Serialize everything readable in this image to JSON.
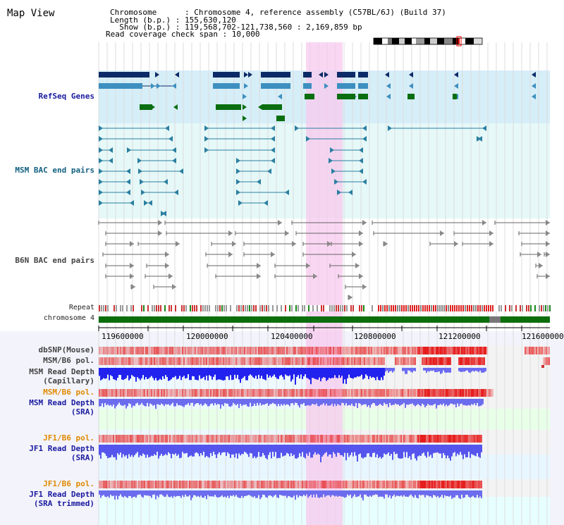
{
  "title": "Map View",
  "info": {
    "chromosome": "Chromosome      : Chromosome 4, reference assembly (C57BL/6J) (Build 37)",
    "length": "Length (b.p.) : 155,630,120",
    "show": "  Show (b.p.) : 119,568,702-121,738,560 : 2,169,859 bp",
    "read_coverage": "Read coverage check span : 10,000"
  },
  "tracks": {
    "refseq": "RefSeq Genes",
    "msm_bac": "MSM BAC end pairs",
    "b6n_bac": "B6N BAC end pairs",
    "repeat": "Repeat",
    "chromosome": "chromosome 4",
    "dbsnp": "dbSNP(Mouse)",
    "msm_b6_pol": "MSM/B6 pol.",
    "msm_read_cap_1": "MSM Read Depth",
    "msm_read_cap_2": "(Capillary)",
    "msm_b6_pol2": "MSM/B6 pol.",
    "msm_read_sra_1": "MSM Read Depth",
    "msm_read_sra_2": "(SRA)",
    "jf1_b6_pol": "JF1/B6 pol.",
    "jf1_read_sra_1": "JF1 Read Depth",
    "jf1_read_sra_2": "(SRA)",
    "jf1_b6_pol2": "JF1/B6 pol.",
    "jf1_read_trim_1": "JF1 Read Depth",
    "jf1_read_trim_2": "(SRA trimmed)"
  },
  "axis": {
    "ticks": [
      "119600000",
      "120000000",
      "120400000",
      "120800000",
      "121200000",
      "121600000"
    ]
  },
  "colors": {
    "highlight": "#f7c9ee",
    "refseq_dark": "#0c2a66",
    "refseq_mid": "#3d8fc0",
    "refseq_green": "#0a6e10",
    "msm_bac": "#2a7fa0",
    "b6n_bac": "#666666",
    "chromosome_bar": "#0b6e0b",
    "depth_blue": "#3333ff"
  }
}
